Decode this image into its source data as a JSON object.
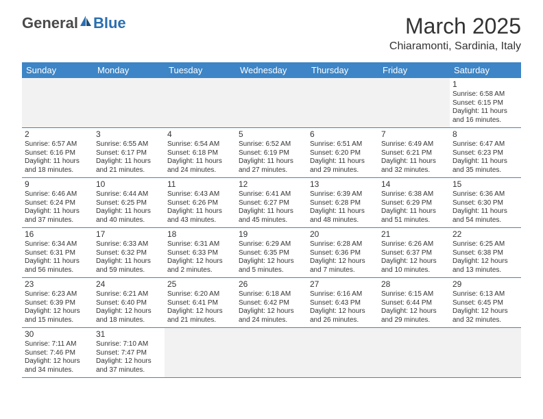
{
  "logo": {
    "general": "General",
    "blue": "Blue"
  },
  "header": {
    "month_title": "March 2025",
    "location": "Chiaramonti, Sardinia, Italy"
  },
  "colors": {
    "header_bg": "#3d85c6",
    "header_text": "#ffffff",
    "border": "#3d85c6",
    "empty_bg": "#f2f2f2",
    "body_text": "#333333",
    "logo_gray": "#4a4a4a",
    "logo_blue": "#2a6fb0"
  },
  "weekdays": [
    "Sunday",
    "Monday",
    "Tuesday",
    "Wednesday",
    "Thursday",
    "Friday",
    "Saturday"
  ],
  "weeks": [
    [
      null,
      null,
      null,
      null,
      null,
      null,
      {
        "num": "1",
        "sunrise": "Sunrise: 6:58 AM",
        "sunset": "Sunset: 6:15 PM",
        "daylight": "Daylight: 11 hours and 16 minutes."
      }
    ],
    [
      {
        "num": "2",
        "sunrise": "Sunrise: 6:57 AM",
        "sunset": "Sunset: 6:16 PM",
        "daylight": "Daylight: 11 hours and 18 minutes."
      },
      {
        "num": "3",
        "sunrise": "Sunrise: 6:55 AM",
        "sunset": "Sunset: 6:17 PM",
        "daylight": "Daylight: 11 hours and 21 minutes."
      },
      {
        "num": "4",
        "sunrise": "Sunrise: 6:54 AM",
        "sunset": "Sunset: 6:18 PM",
        "daylight": "Daylight: 11 hours and 24 minutes."
      },
      {
        "num": "5",
        "sunrise": "Sunrise: 6:52 AM",
        "sunset": "Sunset: 6:19 PM",
        "daylight": "Daylight: 11 hours and 27 minutes."
      },
      {
        "num": "6",
        "sunrise": "Sunrise: 6:51 AM",
        "sunset": "Sunset: 6:20 PM",
        "daylight": "Daylight: 11 hours and 29 minutes."
      },
      {
        "num": "7",
        "sunrise": "Sunrise: 6:49 AM",
        "sunset": "Sunset: 6:21 PM",
        "daylight": "Daylight: 11 hours and 32 minutes."
      },
      {
        "num": "8",
        "sunrise": "Sunrise: 6:47 AM",
        "sunset": "Sunset: 6:23 PM",
        "daylight": "Daylight: 11 hours and 35 minutes."
      }
    ],
    [
      {
        "num": "9",
        "sunrise": "Sunrise: 6:46 AM",
        "sunset": "Sunset: 6:24 PM",
        "daylight": "Daylight: 11 hours and 37 minutes."
      },
      {
        "num": "10",
        "sunrise": "Sunrise: 6:44 AM",
        "sunset": "Sunset: 6:25 PM",
        "daylight": "Daylight: 11 hours and 40 minutes."
      },
      {
        "num": "11",
        "sunrise": "Sunrise: 6:43 AM",
        "sunset": "Sunset: 6:26 PM",
        "daylight": "Daylight: 11 hours and 43 minutes."
      },
      {
        "num": "12",
        "sunrise": "Sunrise: 6:41 AM",
        "sunset": "Sunset: 6:27 PM",
        "daylight": "Daylight: 11 hours and 45 minutes."
      },
      {
        "num": "13",
        "sunrise": "Sunrise: 6:39 AM",
        "sunset": "Sunset: 6:28 PM",
        "daylight": "Daylight: 11 hours and 48 minutes."
      },
      {
        "num": "14",
        "sunrise": "Sunrise: 6:38 AM",
        "sunset": "Sunset: 6:29 PM",
        "daylight": "Daylight: 11 hours and 51 minutes."
      },
      {
        "num": "15",
        "sunrise": "Sunrise: 6:36 AM",
        "sunset": "Sunset: 6:30 PM",
        "daylight": "Daylight: 11 hours and 54 minutes."
      }
    ],
    [
      {
        "num": "16",
        "sunrise": "Sunrise: 6:34 AM",
        "sunset": "Sunset: 6:31 PM",
        "daylight": "Daylight: 11 hours and 56 minutes."
      },
      {
        "num": "17",
        "sunrise": "Sunrise: 6:33 AM",
        "sunset": "Sunset: 6:32 PM",
        "daylight": "Daylight: 11 hours and 59 minutes."
      },
      {
        "num": "18",
        "sunrise": "Sunrise: 6:31 AM",
        "sunset": "Sunset: 6:33 PM",
        "daylight": "Daylight: 12 hours and 2 minutes."
      },
      {
        "num": "19",
        "sunrise": "Sunrise: 6:29 AM",
        "sunset": "Sunset: 6:35 PM",
        "daylight": "Daylight: 12 hours and 5 minutes."
      },
      {
        "num": "20",
        "sunrise": "Sunrise: 6:28 AM",
        "sunset": "Sunset: 6:36 PM",
        "daylight": "Daylight: 12 hours and 7 minutes."
      },
      {
        "num": "21",
        "sunrise": "Sunrise: 6:26 AM",
        "sunset": "Sunset: 6:37 PM",
        "daylight": "Daylight: 12 hours and 10 minutes."
      },
      {
        "num": "22",
        "sunrise": "Sunrise: 6:25 AM",
        "sunset": "Sunset: 6:38 PM",
        "daylight": "Daylight: 12 hours and 13 minutes."
      }
    ],
    [
      {
        "num": "23",
        "sunrise": "Sunrise: 6:23 AM",
        "sunset": "Sunset: 6:39 PM",
        "daylight": "Daylight: 12 hours and 15 minutes."
      },
      {
        "num": "24",
        "sunrise": "Sunrise: 6:21 AM",
        "sunset": "Sunset: 6:40 PM",
        "daylight": "Daylight: 12 hours and 18 minutes."
      },
      {
        "num": "25",
        "sunrise": "Sunrise: 6:20 AM",
        "sunset": "Sunset: 6:41 PM",
        "daylight": "Daylight: 12 hours and 21 minutes."
      },
      {
        "num": "26",
        "sunrise": "Sunrise: 6:18 AM",
        "sunset": "Sunset: 6:42 PM",
        "daylight": "Daylight: 12 hours and 24 minutes."
      },
      {
        "num": "27",
        "sunrise": "Sunrise: 6:16 AM",
        "sunset": "Sunset: 6:43 PM",
        "daylight": "Daylight: 12 hours and 26 minutes."
      },
      {
        "num": "28",
        "sunrise": "Sunrise: 6:15 AM",
        "sunset": "Sunset: 6:44 PM",
        "daylight": "Daylight: 12 hours and 29 minutes."
      },
      {
        "num": "29",
        "sunrise": "Sunrise: 6:13 AM",
        "sunset": "Sunset: 6:45 PM",
        "daylight": "Daylight: 12 hours and 32 minutes."
      }
    ],
    [
      {
        "num": "30",
        "sunrise": "Sunrise: 7:11 AM",
        "sunset": "Sunset: 7:46 PM",
        "daylight": "Daylight: 12 hours and 34 minutes."
      },
      {
        "num": "31",
        "sunrise": "Sunrise: 7:10 AM",
        "sunset": "Sunset: 7:47 PM",
        "daylight": "Daylight: 12 hours and 37 minutes."
      },
      null,
      null,
      null,
      null,
      null
    ]
  ]
}
